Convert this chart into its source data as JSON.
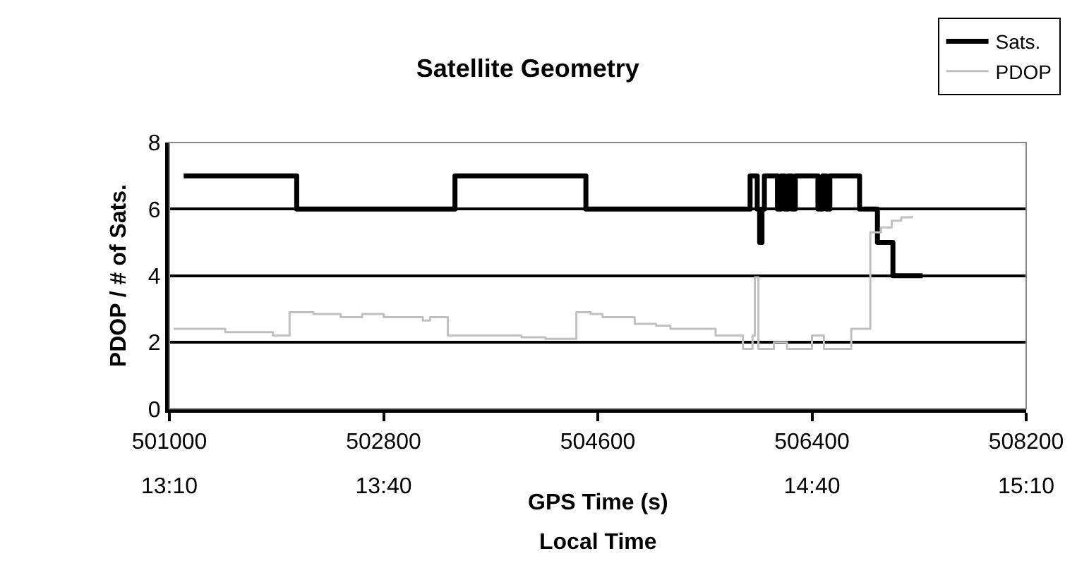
{
  "chart_data": {
    "type": "step",
    "title": "Satellite Geometry",
    "xlabel": "GPS Time (s)",
    "x2label": "Local Time",
    "ylabel": "PDOP / # of Sats.",
    "xlim": [
      501000,
      508200
    ],
    "xticks": [
      501000,
      502800,
      504600,
      506400,
      508200
    ],
    "x2lim": [
      13.1667,
      15.1667
    ],
    "x2ticks": [
      {
        "value": 13.1667,
        "label": "13:10"
      },
      {
        "value": 13.6667,
        "label": "13:40"
      },
      {
        "value": 14.6667,
        "label": "14:40"
      },
      {
        "value": 15.1667,
        "label": "15:10"
      }
    ],
    "ylim": [
      0,
      8
    ],
    "yticks": [
      0,
      2,
      4,
      6,
      8
    ],
    "grid": "y",
    "legend": "top right",
    "series": [
      {
        "name": "Sats.",
        "color": "#000000",
        "x": [
          501120,
          502070,
          503400,
          504500,
          505880,
          505940,
          505960,
          505980,
          506000,
          506110,
          506140,
          506170,
          506200,
          506230,
          506260,
          506450,
          506490,
          506520,
          506550,
          506580,
          506800,
          506950,
          507080,
          507330
        ],
        "values": [
          7,
          6,
          7,
          6,
          7,
          6,
          5,
          6,
          7,
          6,
          7,
          6,
          7,
          6,
          7,
          6,
          7,
          6,
          7,
          7,
          6,
          5,
          4,
          4
        ]
      },
      {
        "name": "PDOP",
        "color": "#c0c0c0",
        "x": [
          501035,
          501470,
          501870,
          502010,
          502210,
          502440,
          502620,
          502800,
          503130,
          503190,
          503340,
          503960,
          504160,
          504420,
          504540,
          504640,
          504910,
          505090,
          505210,
          505590,
          505820,
          505900,
          505920,
          505950,
          506080,
          506190,
          506400,
          506500,
          506730,
          506890,
          506980,
          507070,
          507150,
          507240
        ],
        "values": [
          2.4,
          2.3,
          2.2,
          2.9,
          2.85,
          2.75,
          2.85,
          2.75,
          2.65,
          2.75,
          2.2,
          2.15,
          2.1,
          2.9,
          2.85,
          2.75,
          2.55,
          2.5,
          2.4,
          2.2,
          1.8,
          2.2,
          3.95,
          1.8,
          2.0,
          1.8,
          2.2,
          1.8,
          2.4,
          5.3,
          5.45,
          5.65,
          5.75,
          5.8
        ]
      }
    ]
  }
}
